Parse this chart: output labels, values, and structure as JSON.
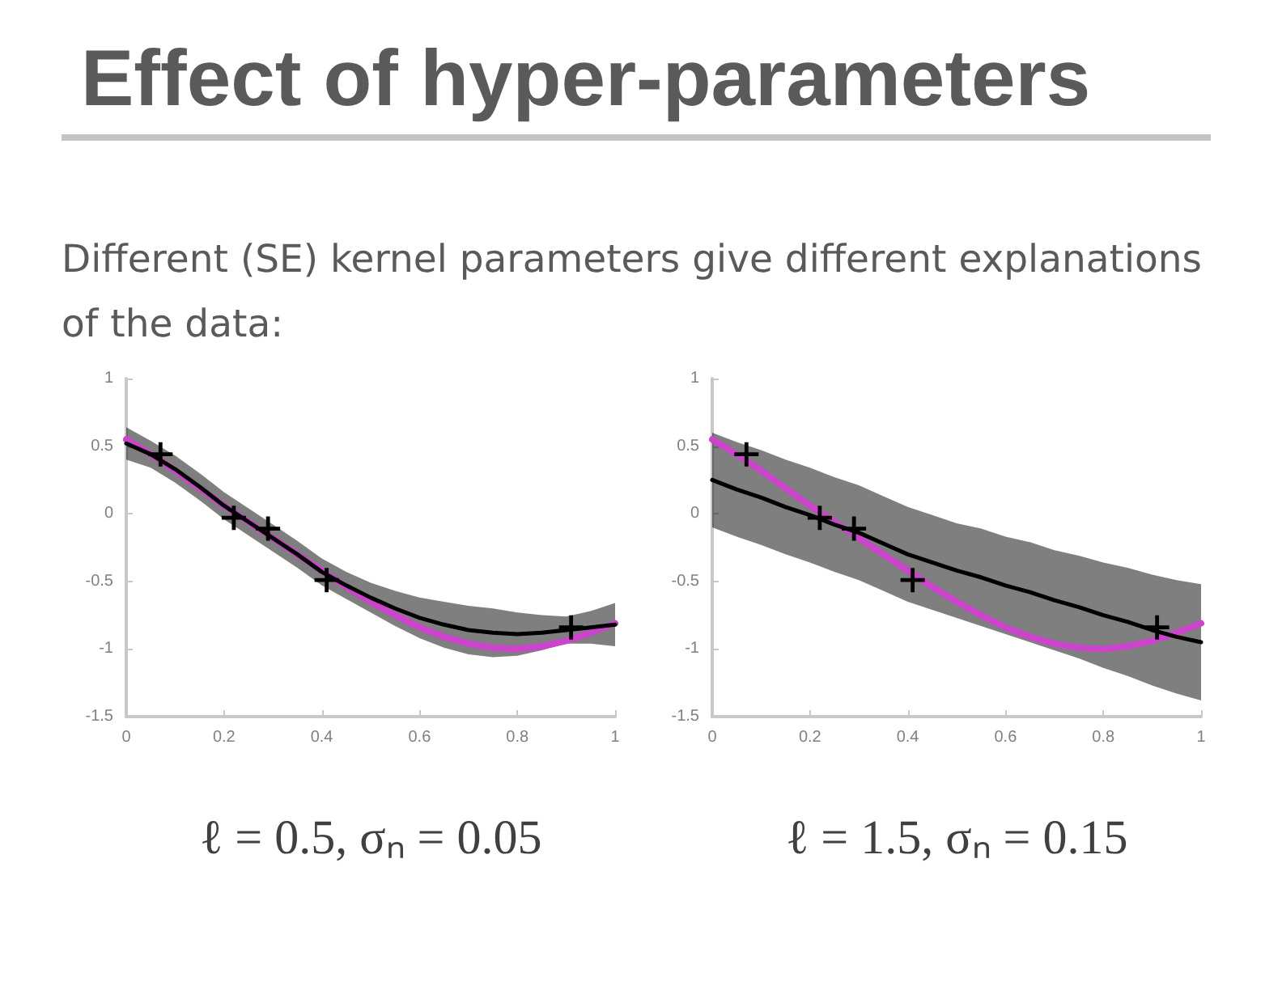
{
  "chart_data": [
    {
      "type": "line",
      "title": "Effect of hyper-parameters",
      "subtitle": "Different (SE) kernel parameters give different explanations of the data:",
      "xlabel": "ℓ = 0.5, σₙ = 0.05",
      "xlim": [
        0,
        1
      ],
      "xticks": [
        0,
        0.2,
        0.4,
        0.6,
        0.8,
        1
      ],
      "ylim": [
        -1.5,
        1
      ],
      "yticks": [
        -1.5,
        -1,
        -0.5,
        0,
        0.5,
        1
      ],
      "grid": false,
      "series": [
        {
          "color": "#000000",
          "x": [
            0,
            0.05,
            0.1,
            0.15,
            0.2,
            0.25,
            0.3,
            0.35,
            0.4,
            0.45,
            0.5,
            0.55,
            0.6,
            0.65,
            0.7,
            0.75,
            0.8,
            0.85,
            0.9,
            0.95,
            1
          ],
          "values": [
            0.52,
            0.44,
            0.33,
            0.2,
            0.06,
            -0.06,
            -0.18,
            -0.3,
            -0.43,
            -0.53,
            -0.62,
            -0.7,
            -0.77,
            -0.82,
            -0.86,
            -0.88,
            -0.89,
            -0.88,
            -0.86,
            -0.84,
            -0.82
          ],
          "lower": [
            0.4,
            0.34,
            0.23,
            0.1,
            -0.04,
            -0.16,
            -0.28,
            -0.4,
            -0.53,
            -0.63,
            -0.73,
            -0.83,
            -0.92,
            -0.99,
            -1.04,
            -1.06,
            -1.05,
            -1.01,
            -0.96,
            -0.96,
            -0.98
          ],
          "upper": [
            0.64,
            0.54,
            0.43,
            0.3,
            0.16,
            0.04,
            -0.08,
            -0.2,
            -0.33,
            -0.43,
            -0.51,
            -0.57,
            -0.62,
            -0.65,
            -0.68,
            -0.7,
            -0.73,
            -0.75,
            -0.76,
            -0.72,
            -0.66
          ]
        },
        {
          "color": "#cc44cc",
          "x": [
            0,
            0.05,
            0.1,
            0.15,
            0.2,
            0.25,
            0.3,
            0.35,
            0.4,
            0.45,
            0.5,
            0.55,
            0.6,
            0.65,
            0.7,
            0.75,
            0.8,
            0.85,
            0.9,
            0.95,
            1
          ],
          "values": [
            0.55,
            0.44,
            0.32,
            0.19,
            0.06,
            -0.06,
            -0.18,
            -0.3,
            -0.42,
            -0.54,
            -0.65,
            -0.75,
            -0.84,
            -0.91,
            -0.96,
            -0.99,
            -1,
            -0.98,
            -0.94,
            -0.88,
            -0.81
          ]
        },
        {
          "type": "scatter",
          "color": "#000000",
          "marker": "cross",
          "x": [
            0.07,
            0.22,
            0.29,
            0.41,
            0.91
          ],
          "values": [
            0.44,
            -0.03,
            -0.11,
            -0.49,
            -0.84
          ]
        }
      ]
    },
    {
      "type": "line",
      "xlabel": "ℓ = 1.5, σₙ = 0.15",
      "xlim": [
        0,
        1
      ],
      "xticks": [
        0,
        0.2,
        0.4,
        0.6,
        0.8,
        1
      ],
      "ylim": [
        -1.5,
        1
      ],
      "yticks": [
        -1.5,
        -1,
        -0.5,
        0,
        0.5,
        1
      ],
      "grid": false,
      "series": [
        {
          "color": "#000000",
          "x": [
            0,
            0.05,
            0.1,
            0.15,
            0.2,
            0.25,
            0.3,
            0.35,
            0.4,
            0.45,
            0.5,
            0.55,
            0.6,
            0.65,
            0.7,
            0.75,
            0.8,
            0.85,
            0.9,
            0.95,
            1
          ],
          "values": [
            0.25,
            0.18,
            0.12,
            0.05,
            -0.01,
            -0.08,
            -0.14,
            -0.22,
            -0.3,
            -0.36,
            -0.42,
            -0.47,
            -0.53,
            -0.58,
            -0.64,
            -0.69,
            -0.75,
            -0.8,
            -0.86,
            -0.91,
            -0.95
          ],
          "lower": [
            -0.1,
            -0.17,
            -0.23,
            -0.3,
            -0.36,
            -0.43,
            -0.49,
            -0.57,
            -0.65,
            -0.71,
            -0.77,
            -0.83,
            -0.89,
            -0.95,
            -1.01,
            -1.07,
            -1.14,
            -1.2,
            -1.27,
            -1.33,
            -1.38
          ],
          "upper": [
            0.6,
            0.53,
            0.47,
            0.4,
            0.34,
            0.27,
            0.21,
            0.13,
            0.05,
            -0.01,
            -0.07,
            -0.11,
            -0.17,
            -0.21,
            -0.27,
            -0.31,
            -0.36,
            -0.4,
            -0.45,
            -0.49,
            -0.52
          ]
        },
        {
          "color": "#cc44cc",
          "x": [
            0,
            0.05,
            0.1,
            0.15,
            0.2,
            0.25,
            0.3,
            0.35,
            0.4,
            0.45,
            0.5,
            0.55,
            0.6,
            0.65,
            0.7,
            0.75,
            0.8,
            0.85,
            0.9,
            0.95,
            1
          ],
          "values": [
            0.55,
            0.44,
            0.32,
            0.19,
            0.06,
            -0.06,
            -0.18,
            -0.3,
            -0.42,
            -0.54,
            -0.65,
            -0.75,
            -0.84,
            -0.91,
            -0.96,
            -0.99,
            -1,
            -0.98,
            -0.94,
            -0.88,
            -0.81
          ]
        },
        {
          "type": "scatter",
          "color": "#000000",
          "marker": "cross",
          "x": [
            0.07,
            0.22,
            0.29,
            0.41,
            0.91
          ],
          "values": [
            0.44,
            -0.03,
            -0.11,
            -0.49,
            -0.84
          ]
        }
      ]
    }
  ]
}
